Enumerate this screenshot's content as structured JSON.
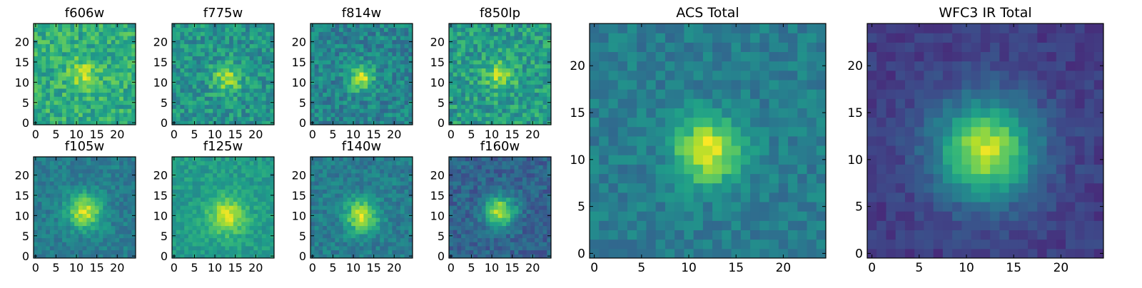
{
  "figure": {
    "colormap": [
      "#440154",
      "#482878",
      "#3e4989",
      "#31688e",
      "#26828e",
      "#1f9e89",
      "#35b779",
      "#6ece58",
      "#b5de2b",
      "#fde725"
    ]
  },
  "chart_data": [
    {
      "type": "heatmap",
      "title": "f606w",
      "grid_size": 25,
      "xlim": [
        0,
        24
      ],
      "ylim": [
        0,
        24
      ],
      "xticks": [
        0,
        5,
        10,
        15,
        20
      ],
      "yticks": [
        0,
        5,
        10,
        15,
        20
      ],
      "peak": [
        12,
        12
      ],
      "peak_width": 2.6,
      "peak_amp": 0.25,
      "bg": 0.62,
      "noise": 0.3,
      "sky_dip": 0,
      "seed": 11
    },
    {
      "type": "heatmap",
      "title": "f775w",
      "grid_size": 25,
      "xlim": [
        0,
        24
      ],
      "ylim": [
        0,
        24
      ],
      "xticks": [
        0,
        5,
        10,
        15,
        20
      ],
      "yticks": [
        0,
        5,
        10,
        15,
        20
      ],
      "peak": [
        13,
        11
      ],
      "peak_width": 2.4,
      "peak_amp": 0.35,
      "bg": 0.52,
      "noise": 0.3,
      "sky_dip": 0,
      "seed": 23
    },
    {
      "type": "heatmap",
      "title": "f814w",
      "grid_size": 25,
      "xlim": [
        0,
        24
      ],
      "ylim": [
        0,
        24
      ],
      "xticks": [
        0,
        5,
        10,
        15,
        20
      ],
      "yticks": [
        0,
        5,
        10,
        15,
        20
      ],
      "peak": [
        12,
        11
      ],
      "peak_width": 2.2,
      "peak_amp": 0.45,
      "bg": 0.45,
      "noise": 0.28,
      "sky_dip": 0,
      "seed": 37
    },
    {
      "type": "heatmap",
      "title": "f850lp",
      "grid_size": 25,
      "xlim": [
        0,
        24
      ],
      "ylim": [
        0,
        24
      ],
      "xticks": [
        0,
        5,
        10,
        15,
        20
      ],
      "yticks": [
        0,
        5,
        10,
        15,
        20
      ],
      "peak": [
        12,
        12
      ],
      "peak_width": 2.5,
      "peak_amp": 0.3,
      "bg": 0.55,
      "noise": 0.32,
      "sky_dip": 0,
      "seed": 41
    },
    {
      "type": "heatmap",
      "title": "f105w",
      "grid_size": 25,
      "xlim": [
        0,
        24
      ],
      "ylim": [
        0,
        24
      ],
      "xticks": [
        0,
        5,
        10,
        15,
        20
      ],
      "yticks": [
        0,
        5,
        10,
        15,
        20
      ],
      "peak": [
        12,
        11
      ],
      "peak_width": 3.0,
      "peak_amp": 0.5,
      "bg": 0.42,
      "noise": 0.18,
      "sky_dip": 0,
      "seed": 53
    },
    {
      "type": "heatmap",
      "title": "f125w",
      "grid_size": 25,
      "xlim": [
        0,
        24
      ],
      "ylim": [
        0,
        24
      ],
      "xticks": [
        0,
        5,
        10,
        15,
        20
      ],
      "yticks": [
        0,
        5,
        10,
        15,
        20
      ],
      "peak": [
        13,
        10
      ],
      "peak_width": 3.2,
      "peak_amp": 0.38,
      "bg": 0.55,
      "noise": 0.17,
      "sky_dip": 0,
      "seed": 67
    },
    {
      "type": "heatmap",
      "title": "f140w",
      "grid_size": 25,
      "xlim": [
        0,
        24
      ],
      "ylim": [
        0,
        24
      ],
      "xticks": [
        0,
        5,
        10,
        15,
        20
      ],
      "yticks": [
        0,
        5,
        10,
        15,
        20
      ],
      "peak": [
        12,
        10
      ],
      "peak_width": 2.8,
      "peak_amp": 0.5,
      "bg": 0.42,
      "noise": 0.2,
      "sky_dip": 0,
      "seed": 71
    },
    {
      "type": "heatmap",
      "title": "f160w",
      "grid_size": 25,
      "xlim": [
        0,
        24
      ],
      "ylim": [
        0,
        24
      ],
      "xticks": [
        0,
        5,
        10,
        15,
        20
      ],
      "yticks": [
        0,
        5,
        10,
        15,
        20
      ],
      "peak": [
        12,
        11
      ],
      "peak_width": 2.6,
      "peak_amp": 0.6,
      "bg": 0.32,
      "noise": 0.2,
      "sky_dip": 0,
      "seed": 83
    },
    {
      "type": "heatmap",
      "title": "ACS Total",
      "grid_size": 25,
      "xlim": [
        0,
        24
      ],
      "ylim": [
        0,
        24
      ],
      "xticks": [
        0,
        5,
        10,
        15,
        20
      ],
      "yticks": [
        0,
        5,
        10,
        15,
        20
      ],
      "peak": [
        12,
        11
      ],
      "peak_width": 2.4,
      "peak_amp": 0.55,
      "bg": 0.42,
      "noise": 0.18,
      "sky_dip": 0,
      "seed": 97
    },
    {
      "type": "heatmap",
      "title": "WFC3 IR Total",
      "grid_size": 25,
      "xlim": [
        0,
        24
      ],
      "ylim": [
        0,
        24
      ],
      "xticks": [
        0,
        5,
        10,
        15,
        20
      ],
      "yticks": [
        0,
        5,
        10,
        15,
        20
      ],
      "peak": [
        12,
        11
      ],
      "peak_width": 3.4,
      "peak_amp": 0.62,
      "bg": 0.3,
      "noise": 0.12,
      "sky_dip": 0.12,
      "seed": 103
    }
  ]
}
